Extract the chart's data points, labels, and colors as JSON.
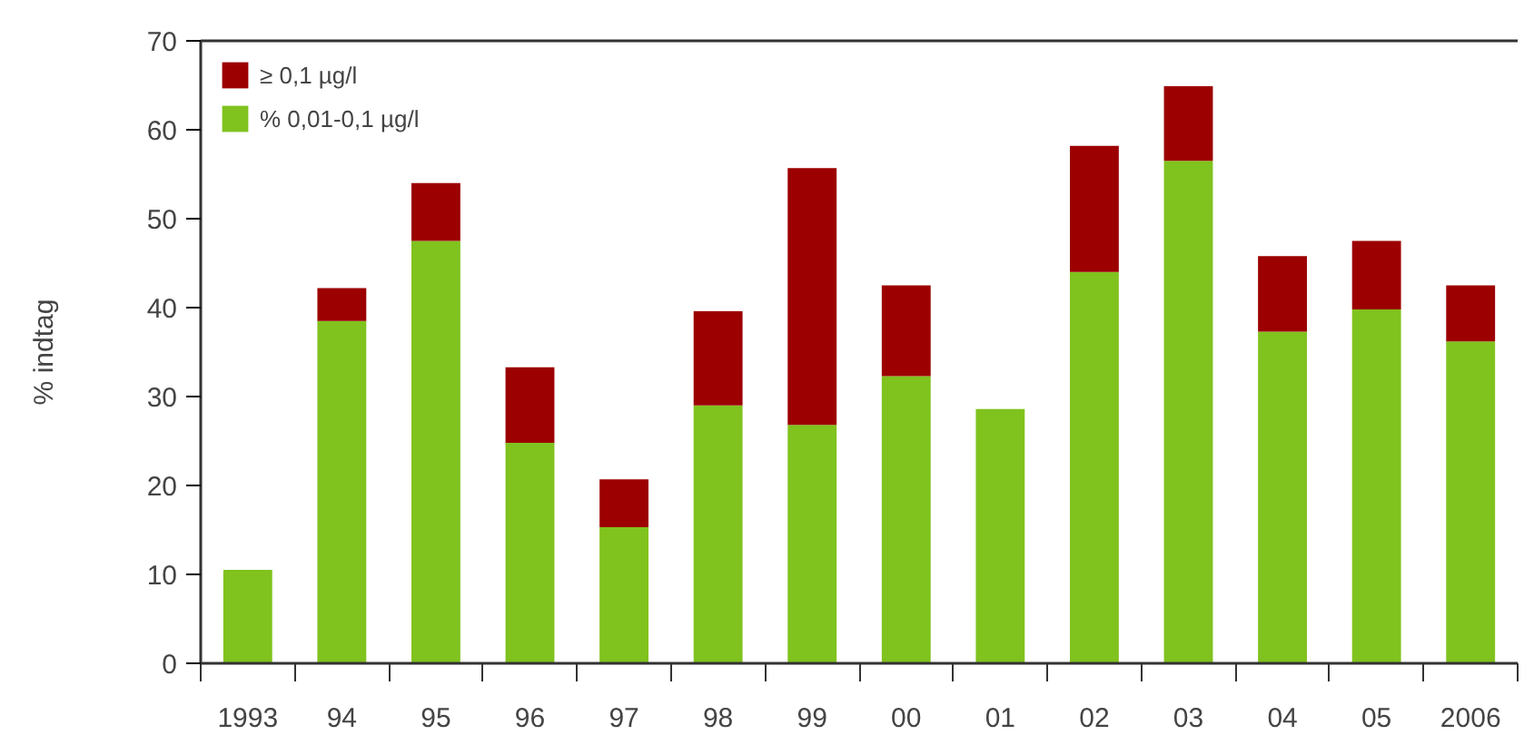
{
  "chart_data": {
    "type": "bar",
    "stacked": true,
    "ylabel": "% indtag",
    "categories": [
      "1993",
      "94",
      "95",
      "96",
      "97",
      "98",
      "99",
      "00",
      "01",
      "02",
      "03",
      "04",
      "05",
      "2006"
    ],
    "series": [
      {
        "name": "% 0,01-0,1 µg/l",
        "color": "#80c21e",
        "values": [
          10.5,
          38.5,
          47.5,
          24.8,
          15.3,
          29,
          26.8,
          32.3,
          28.6,
          44,
          56.5,
          37.3,
          39.8,
          36.2
        ]
      },
      {
        "name": "≥ 0,1 µg/l",
        "color": "#9c0000",
        "values": [
          0,
          3.7,
          6.5,
          8.5,
          5.4,
          10.6,
          28.9,
          10.2,
          0,
          14.2,
          8.4,
          8.5,
          7.7,
          6.3
        ]
      }
    ],
    "ylim": [
      0,
      70
    ],
    "yticks": [
      0,
      10,
      20,
      30,
      40,
      50,
      60,
      70
    ],
    "grid": false,
    "legend": "top left"
  }
}
